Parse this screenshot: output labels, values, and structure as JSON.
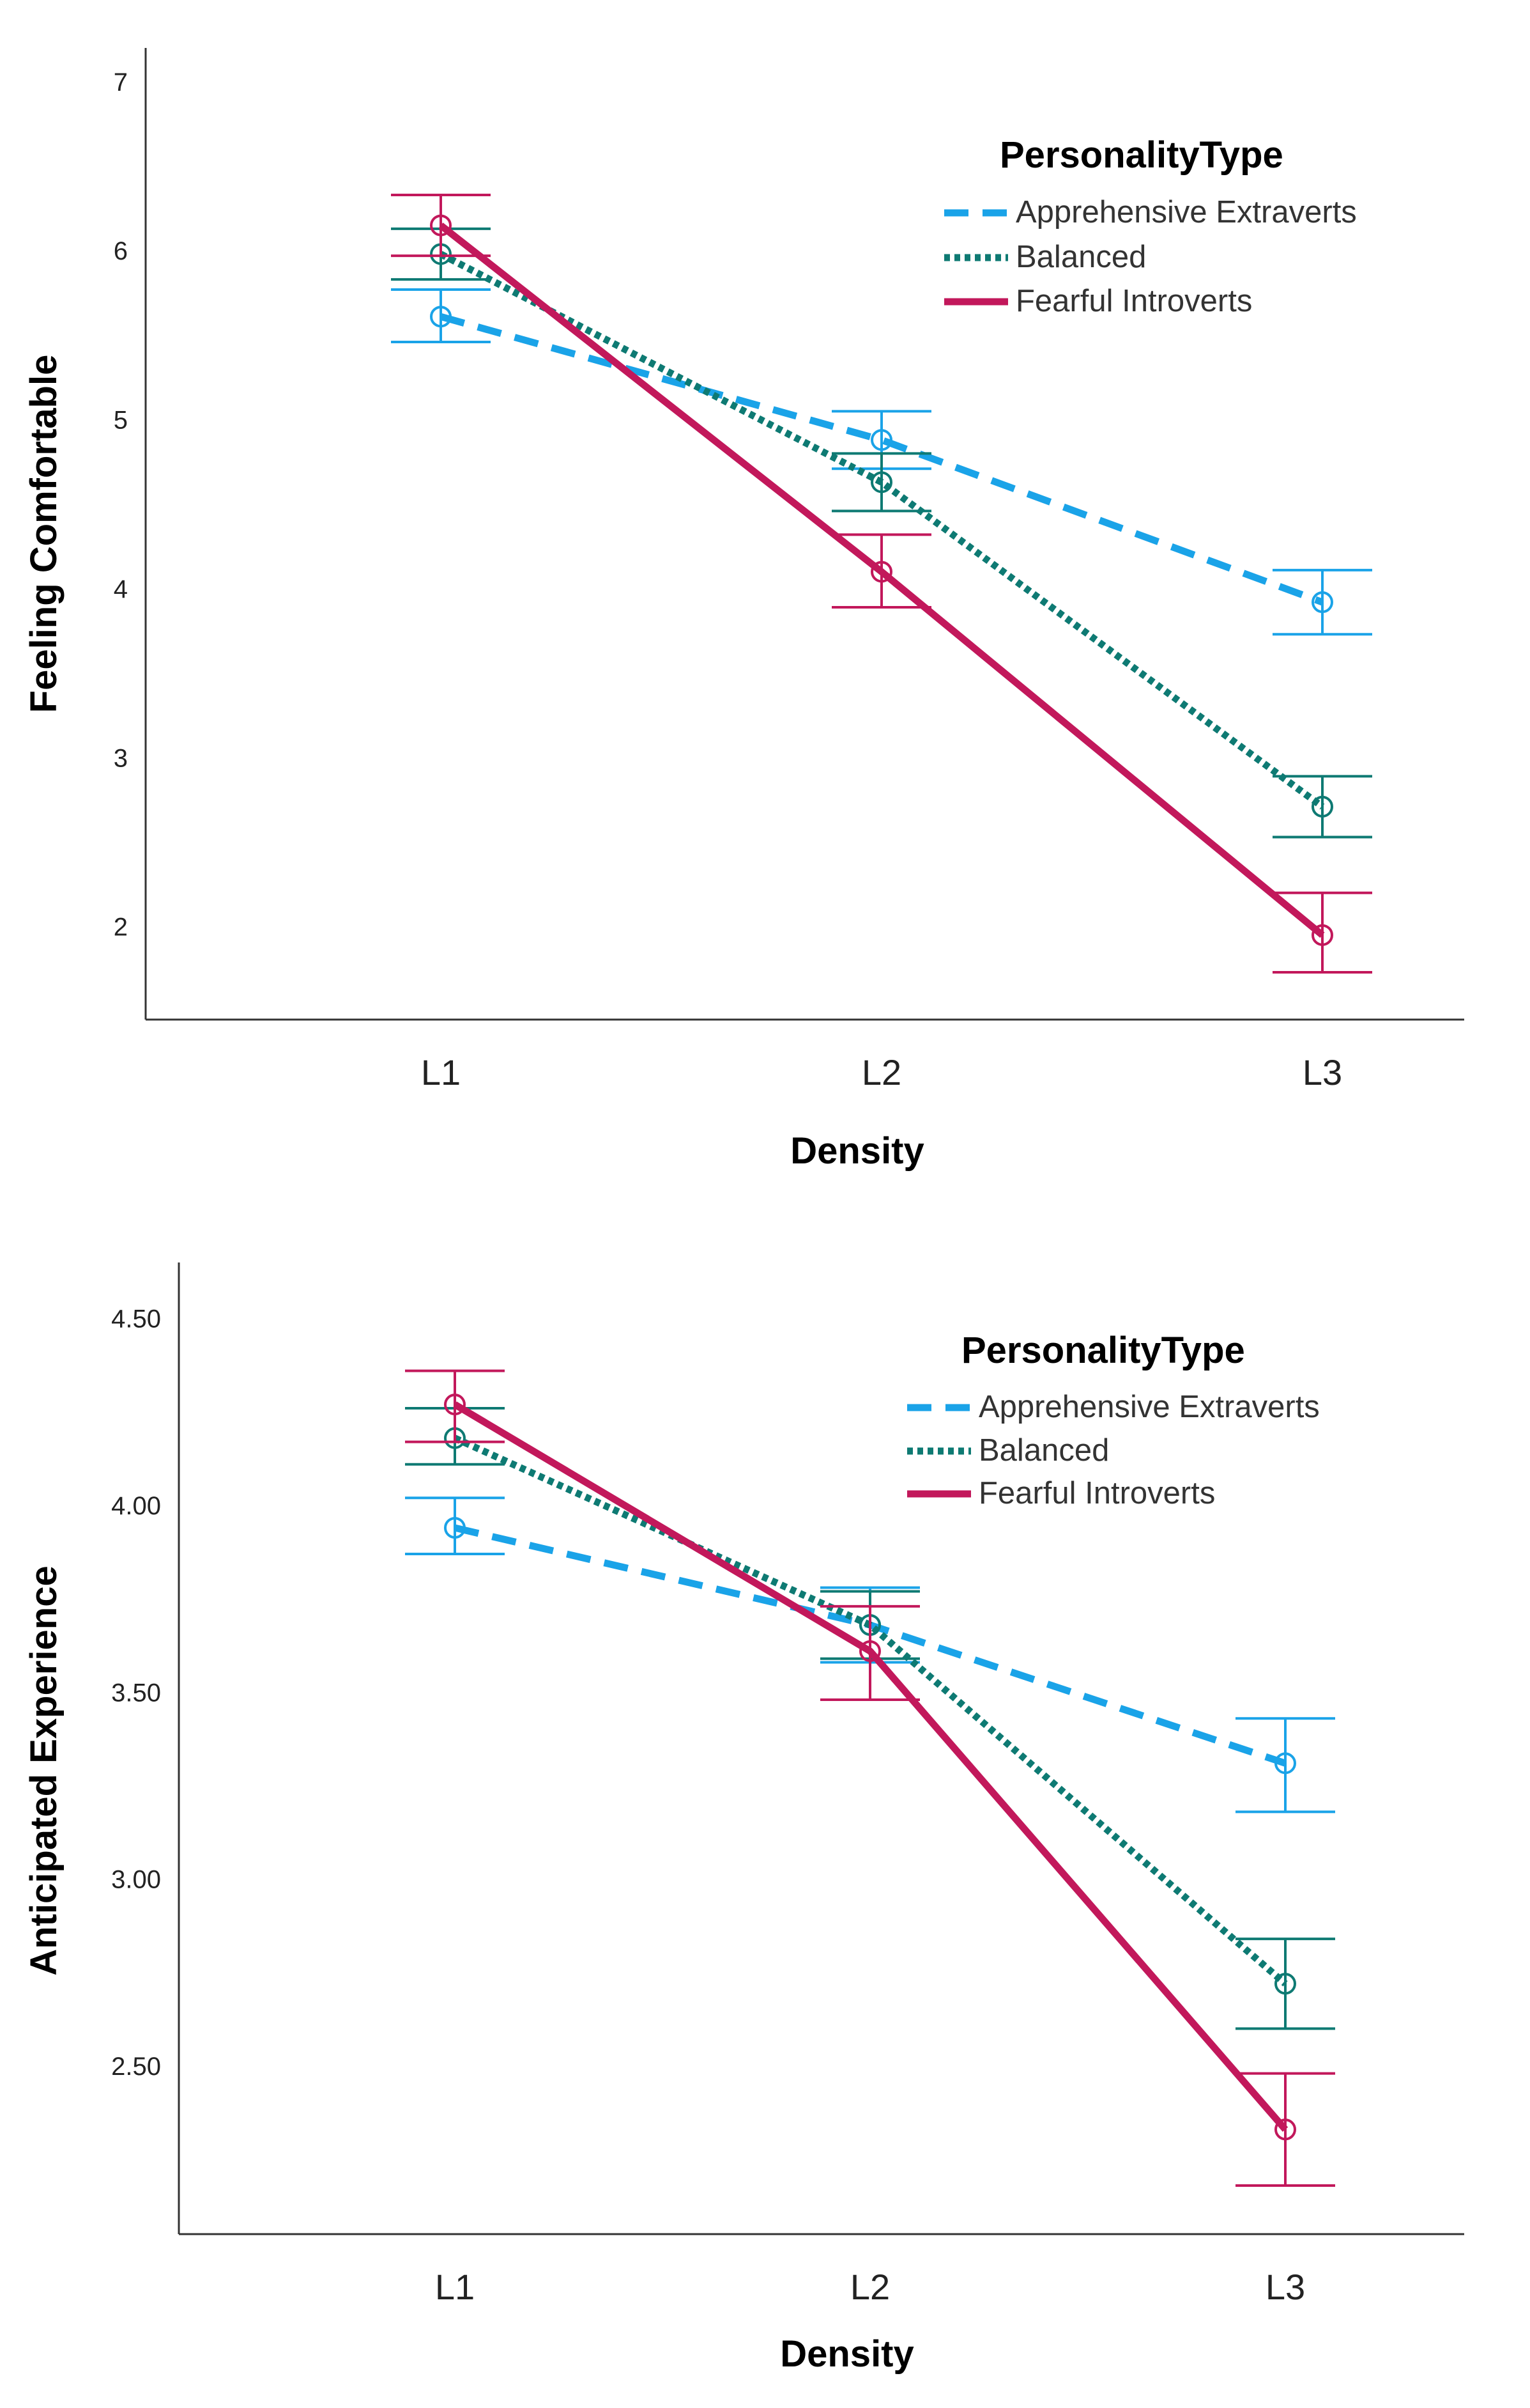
{
  "chart_data": [
    {
      "type": "line",
      "title": "",
      "xlabel": "Density",
      "ylabel": "Feeling Comfortable",
      "categories": [
        "L1",
        "L2",
        "L3"
      ],
      "ylim": [
        1.45,
        7.2
      ],
      "yticks": [
        "2",
        "3",
        "4",
        "5",
        "6",
        "7"
      ],
      "legend_title": "PersonalityType",
      "legend_position": "top-right",
      "series": [
        {
          "name": "Apprehensive Extraverts",
          "color": "#1aa3e8",
          "style": "dashed",
          "values": [
            5.61,
            4.88,
            3.92
          ],
          "error_low": [
            5.46,
            4.71,
            3.73
          ],
          "error_high": [
            5.77,
            5.05,
            4.11
          ]
        },
        {
          "name": "Balanced",
          "color": "#0e7a73",
          "style": "dotted",
          "values": [
            5.98,
            4.63,
            2.71
          ],
          "error_low": [
            5.83,
            4.46,
            2.53
          ],
          "error_high": [
            6.13,
            4.8,
            2.89
          ]
        },
        {
          "name": "Fearful Introverts",
          "color": "#c2185b",
          "style": "solid",
          "values": [
            6.15,
            4.1,
            1.95
          ],
          "error_low": [
            5.97,
            3.89,
            1.73
          ],
          "error_high": [
            6.33,
            4.32,
            2.2
          ]
        }
      ]
    },
    {
      "type": "line",
      "title": "",
      "xlabel": "Density",
      "ylabel": "Anticipated Experience",
      "categories": [
        "L1",
        "L2",
        "L3"
      ],
      "ylim": [
        2.05,
        4.65
      ],
      "yticks": [
        "2.50",
        "3.00",
        "3.50",
        "4.00",
        "4.50"
      ],
      "legend_title": "PersonalityType",
      "legend_position": "top-right",
      "series": [
        {
          "name": "Apprehensive Extraverts",
          "color": "#1aa3e8",
          "style": "dashed",
          "values": [
            3.94,
            3.68,
            3.31
          ],
          "error_low": [
            3.87,
            3.58,
            3.18
          ],
          "error_high": [
            4.02,
            3.78,
            3.43
          ]
        },
        {
          "name": "Balanced",
          "color": "#0e7a73",
          "style": "dotted",
          "values": [
            4.18,
            3.68,
            2.72
          ],
          "error_low": [
            4.11,
            3.59,
            2.6
          ],
          "error_high": [
            4.26,
            3.77,
            2.84
          ]
        },
        {
          "name": "Fearful Introverts",
          "color": "#c2185b",
          "style": "solid",
          "values": [
            4.27,
            3.61,
            2.33
          ],
          "error_low": [
            4.17,
            3.48,
            2.18
          ],
          "error_high": [
            4.36,
            3.73,
            2.48
          ]
        }
      ]
    }
  ]
}
